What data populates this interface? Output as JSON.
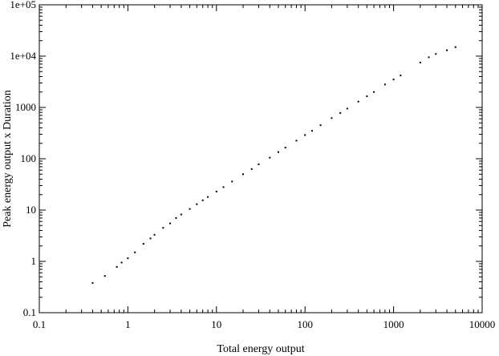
{
  "chart_data": {
    "type": "scatter",
    "title": "",
    "xlabel": "Total energy output",
    "ylabel": "Peak energy output  x  Duration",
    "xscale": "log",
    "yscale": "log",
    "xlim": [
      0.1,
      10000
    ],
    "ylim": [
      0.1,
      100000
    ],
    "xticks": [
      {
        "value": 0.1,
        "label": "0.1"
      },
      {
        "value": 1,
        "label": "1"
      },
      {
        "value": 10,
        "label": "10"
      },
      {
        "value": 100,
        "label": "100"
      },
      {
        "value": 1000,
        "label": "1000"
      },
      {
        "value": 10000,
        "label": "10000"
      }
    ],
    "yticks": [
      {
        "value": 0.1,
        "label": "0.1"
      },
      {
        "value": 1,
        "label": "1"
      },
      {
        "value": 10,
        "label": "10"
      },
      {
        "value": 100,
        "label": "100"
      },
      {
        "value": 1000,
        "label": "1000"
      },
      {
        "value": 10000,
        "label": "1e+04"
      },
      {
        "value": 100000,
        "label": "1e+05"
      }
    ],
    "grid": false,
    "legend": "none",
    "marker_color": "#000000",
    "series": [
      {
        "points": [
          [
            0.4,
            0.38
          ],
          [
            0.55,
            0.52
          ],
          [
            0.75,
            0.78
          ],
          [
            0.85,
            0.95
          ],
          [
            1.0,
            1.15
          ],
          [
            1.2,
            1.5
          ],
          [
            1.5,
            2.2
          ],
          [
            1.8,
            2.8
          ],
          [
            2.0,
            3.3
          ],
          [
            2.5,
            4.5
          ],
          [
            3.0,
            5.5
          ],
          [
            3.5,
            7.0
          ],
          [
            4.0,
            8.2
          ],
          [
            5.0,
            10.5
          ],
          [
            6.0,
            13.0
          ],
          [
            7.0,
            15.5
          ],
          [
            8.0,
            18.0
          ],
          [
            10,
            23
          ],
          [
            12,
            28
          ],
          [
            15,
            36
          ],
          [
            20,
            50
          ],
          [
            25,
            63
          ],
          [
            30,
            78
          ],
          [
            40,
            105
          ],
          [
            50,
            135
          ],
          [
            60,
            165
          ],
          [
            80,
            225
          ],
          [
            100,
            290
          ],
          [
            120,
            350
          ],
          [
            150,
            450
          ],
          [
            200,
            620
          ],
          [
            250,
            780
          ],
          [
            300,
            950
          ],
          [
            400,
            1300
          ],
          [
            500,
            1650
          ],
          [
            600,
            2000
          ],
          [
            800,
            2800
          ],
          [
            1000,
            3500
          ],
          [
            1200,
            4200
          ],
          [
            2000,
            7500
          ],
          [
            2500,
            9500
          ],
          [
            3000,
            11000
          ],
          [
            4000,
            13000
          ],
          [
            5000,
            15000
          ]
        ]
      }
    ]
  }
}
